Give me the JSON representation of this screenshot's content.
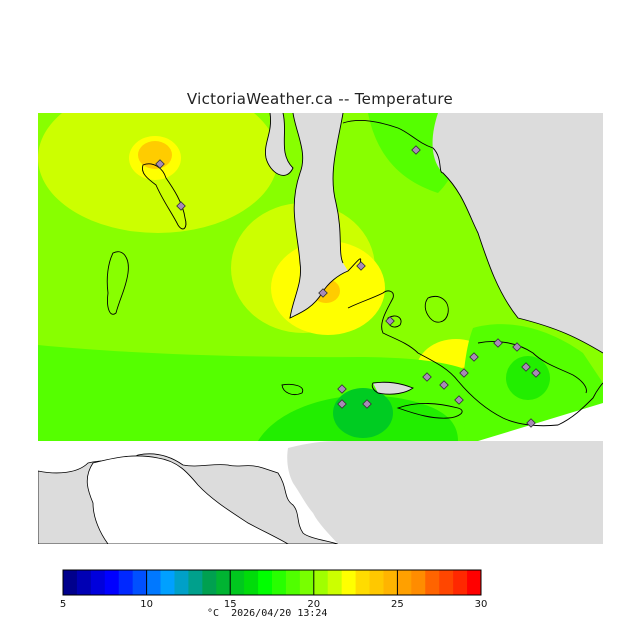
{
  "title": "VictoriaWeather.ca -- Temperature",
  "colors": {
    "land_gray": "#dcdcdc",
    "map_background": "#ffffff",
    "station_marker": "#a88ab8",
    "coast": "#000000",
    "field_bright_green": "#88ff00",
    "field_yellow_green": "#ccff00",
    "field_yellow": "#ffff00",
    "field_orange_yellow": "#ffcc00",
    "field_green": "#55ff00",
    "field_mid_green": "#22ee00",
    "field_dark_green": "#00cc22"
  },
  "legend": {
    "unit": "°C",
    "min": 5,
    "max": 30,
    "tick_labels": [
      "5",
      "10",
      "15",
      "20",
      "25",
      "30"
    ],
    "swatches": [
      "#00008c",
      "#0000b4",
      "#0000dc",
      "#0000ff",
      "#0028ff",
      "#0050ff",
      "#0078ff",
      "#00a0ff",
      "#00a0c8",
      "#00a08c",
      "#00a050",
      "#00b432",
      "#00c81e",
      "#00dc0a",
      "#00ff00",
      "#28ff00",
      "#50ff00",
      "#78ff00",
      "#a0ff00",
      "#ccff00",
      "#ffff00",
      "#ffdc00",
      "#ffc800",
      "#ffb400",
      "#ffa000",
      "#ff8c00",
      "#ff6400",
      "#ff4600",
      "#ff2800",
      "#ff0000"
    ]
  },
  "timestamp": "2026/04/20 13:24"
}
